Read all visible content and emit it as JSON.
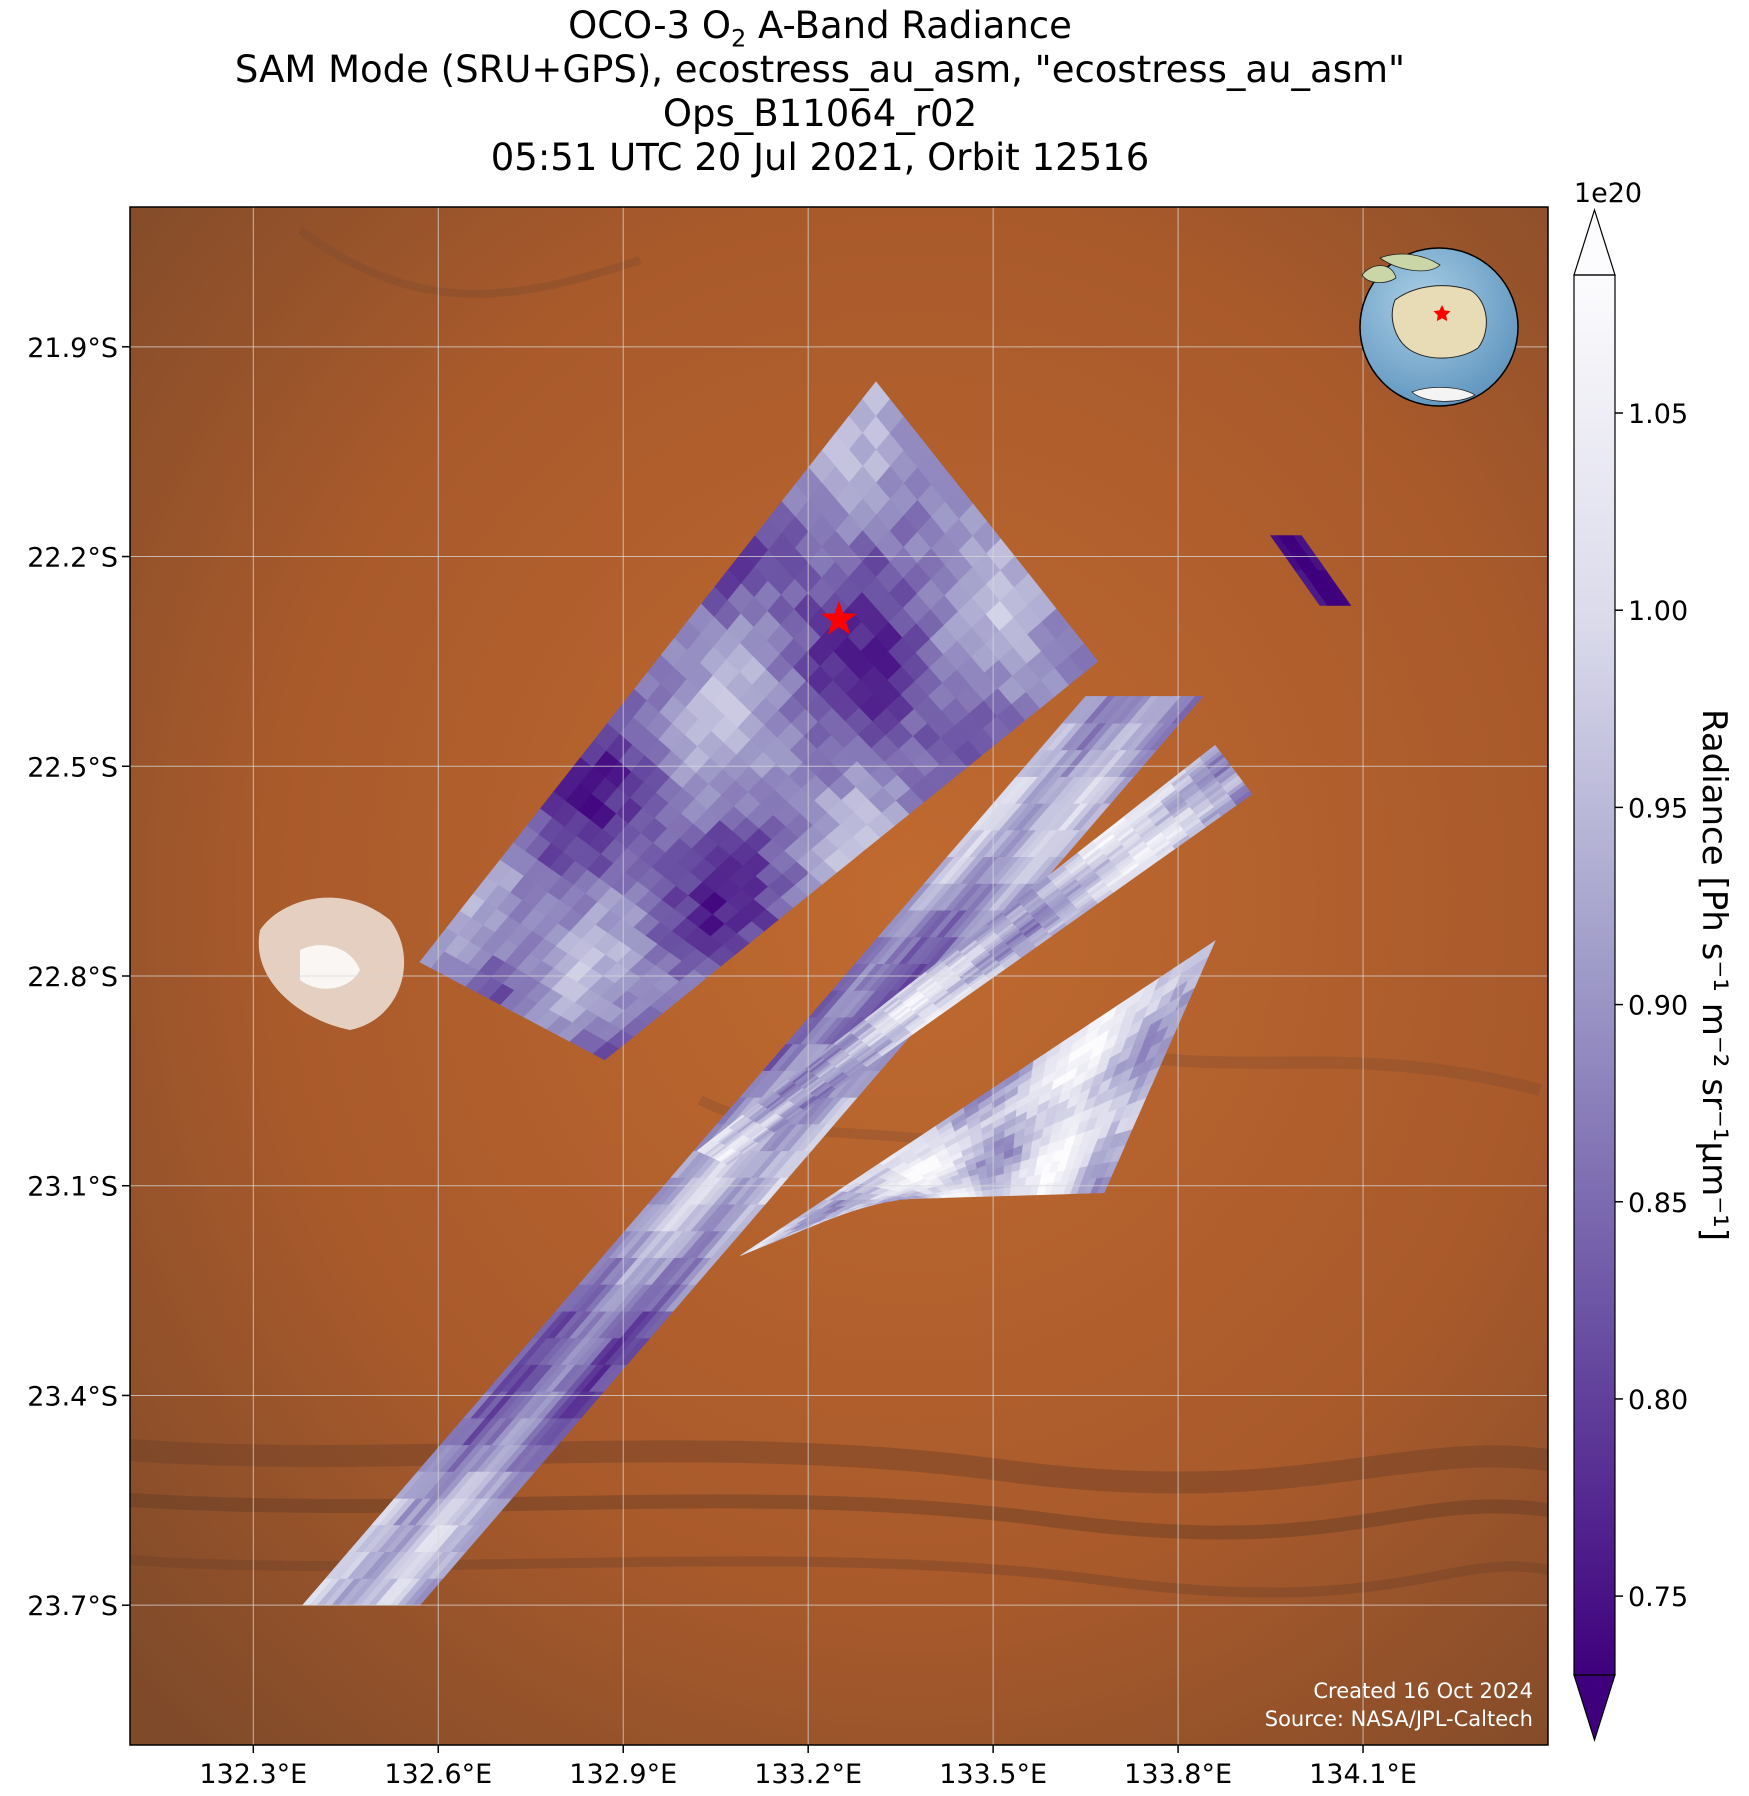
{
  "title": {
    "line1_prefix": "OCO-3 O",
    "line1_sub": "2",
    "line1_suffix": " A-Band Radiance",
    "line2": "SAM Mode (SRU+GPS), ecostress_au_asm, \"ecostress_au_asm\"",
    "line3": "Ops_B11064_r02",
    "line4": "05:51 UTC 20 Jul 2021, Orbit 12516"
  },
  "map": {
    "lon_range": [
      132.1,
      134.4
    ],
    "lat_range": [
      -23.9,
      -21.7
    ],
    "lat_ticks": [
      {
        "value": -21.9,
        "label": "21.9°S"
      },
      {
        "value": -22.2,
        "label": "22.2°S"
      },
      {
        "value": -22.5,
        "label": "22.5°S"
      },
      {
        "value": -22.8,
        "label": "22.8°S"
      },
      {
        "value": -23.1,
        "label": "23.1°S"
      },
      {
        "value": -23.4,
        "label": "23.4°S"
      },
      {
        "value": -23.7,
        "label": "23.7°S"
      }
    ],
    "lon_ticks": [
      {
        "value": 132.3,
        "label": "132.3°E"
      },
      {
        "value": 132.6,
        "label": "132.6°E"
      },
      {
        "value": 132.9,
        "label": "132.9°E"
      },
      {
        "value": 133.2,
        "label": "133.2°E"
      },
      {
        "value": 133.5,
        "label": "133.5°E"
      },
      {
        "value": 133.8,
        "label": "133.8°E"
      },
      {
        "value": 134.1,
        "label": "134.1°E"
      }
    ],
    "target_marker": {
      "lon": 133.25,
      "lat": -22.29,
      "symbol": "star",
      "color": "#ff0000"
    },
    "background_color": "#b5642e",
    "credit_line1": "Created 16 Oct 2024",
    "credit_line2": "Source: NASA/JPL-Caltech"
  },
  "colorbar": {
    "multiplier": "1e20",
    "label": "Radiance [Ph s⁻¹ m⁻² sr⁻¹μm⁻¹]",
    "range": [
      0.73,
      1.085
    ],
    "extend": "both",
    "colormap": "Purples_r",
    "ticks": [
      {
        "value": 0.75,
        "label": "0.75"
      },
      {
        "value": 0.8,
        "label": "0.80"
      },
      {
        "value": 0.85,
        "label": "0.85"
      },
      {
        "value": 0.9,
        "label": "0.90"
      },
      {
        "value": 0.95,
        "label": "0.95"
      },
      {
        "value": 1.0,
        "label": "1.00"
      },
      {
        "value": 1.05,
        "label": "1.05"
      }
    ]
  },
  "chart_data": {
    "type": "heatmap",
    "title": "OCO-3 O2 A-Band Radiance",
    "colorbar_label": "Radiance [Ph s⁻¹ m⁻² sr⁻¹μm⁻¹]",
    "colorbar_multiplier": "1e20",
    "value_range": [
      0.73,
      1.085
    ],
    "xlim": [
      132.1,
      134.4
    ],
    "ylim": [
      -23.9,
      -21.7
    ],
    "swaths": [
      {
        "corners": [
          [
            132.57,
            -22.78
          ],
          [
            133.31,
            -21.95
          ],
          [
            133.67,
            -22.35
          ],
          [
            132.87,
            -22.92
          ]
        ],
        "mean_value": 0.86
      },
      {
        "corners": [
          [
            132.38,
            -23.7
          ],
          [
            133.65,
            -22.4
          ],
          [
            133.84,
            -22.4
          ],
          [
            132.57,
            -23.7
          ]
        ],
        "mean_value": 0.9
      },
      {
        "corners": [
          [
            133.02,
            -23.05
          ],
          [
            133.86,
            -22.47
          ],
          [
            133.92,
            -22.54
          ],
          [
            133.07,
            -23.07
          ]
        ],
        "mean_value": 0.96
      },
      {
        "corners": [
          [
            133.09,
            -23.2
          ],
          [
            133.86,
            -22.75
          ],
          [
            133.68,
            -23.11
          ],
          [
            133.31,
            -23.12
          ]
        ],
        "mean_value": 0.99
      },
      {
        "corners": [
          [
            133.95,
            -22.17
          ],
          [
            134.0,
            -22.17
          ],
          [
            134.08,
            -22.27
          ],
          [
            134.03,
            -22.27
          ]
        ],
        "mean_value": 0.74
      }
    ]
  }
}
